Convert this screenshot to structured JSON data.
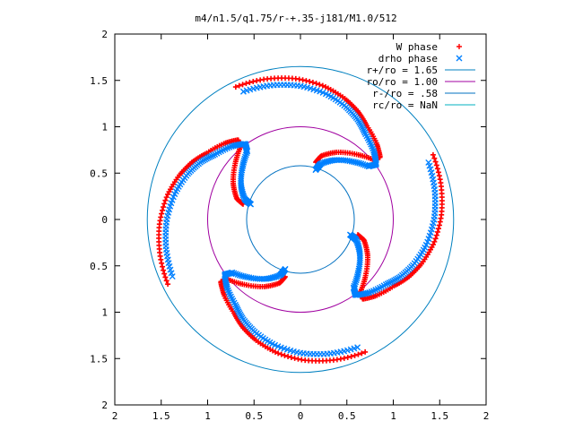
{
  "chart_data": {
    "type": "scatter",
    "title": "m4/n1.5/q1.75/r-+.35-j181/M1.0/512",
    "xlabel": "",
    "ylabel": "",
    "xlim": [
      -2,
      2
    ],
    "ylim": [
      -2,
      2
    ],
    "x_tick_labels": [
      "2",
      "1.5",
      "1",
      "0.5",
      "0",
      "0.5",
      "1",
      "1.5",
      "2"
    ],
    "y_tick_labels": [
      "2",
      "1.5",
      "1",
      "0.5",
      "0",
      "0.5",
      "1",
      "1.5",
      "2"
    ],
    "grid": false,
    "legend_position": "top-right",
    "legend": [
      {
        "label": "W phase",
        "color": "#ff0000",
        "marker": "plus"
      },
      {
        "label": "drho phase",
        "color": "#0080ff",
        "marker": "cross"
      },
      {
        "label": "r+/ro = 1.65",
        "color": "#0080c0",
        "marker": "line"
      },
      {
        "label": "ro/ro = 1.00",
        "color": "#a000a0",
        "marker": "line"
      },
      {
        "label": "r-/ro = .58",
        "color": "#0070c0",
        "marker": "line"
      },
      {
        "label": "rc/ro = NaN",
        "color": "#00b0c0",
        "marker": "line"
      }
    ],
    "circles": [
      {
        "name": "r+/ro",
        "r": 1.65,
        "color": "#0080c0"
      },
      {
        "name": "ro/ro",
        "r": 1.0,
        "color": "#a000a0"
      },
      {
        "name": "r-/ro",
        "r": 0.58,
        "color": "#0070c0"
      }
    ],
    "arms": [
      {
        "r": [
          0.6,
          0.68,
          0.78,
          0.88,
          0.97,
          1.05,
          1.12,
          1.2,
          1.28,
          1.35,
          1.42,
          1.48,
          1.52,
          1.55
        ],
        "theta_deg": [
          75,
          72,
          62,
          50,
          40,
          38,
          45,
          55,
          62,
          70,
          80,
          92,
          104,
          116
        ]
      },
      {
        "r": [
          0.6,
          0.68,
          0.78,
          0.88,
          0.97,
          1.05,
          1.12,
          1.2,
          1.28,
          1.35,
          1.42,
          1.48,
          1.52,
          1.55
        ],
        "theta_deg": [
          -15,
          -18,
          -28,
          -40,
          -50,
          -52,
          -45,
          -35,
          -28,
          -20,
          -10,
          2,
          14,
          26
        ]
      },
      {
        "r": [
          0.6,
          0.68,
          0.78,
          0.88,
          0.97,
          1.05,
          1.12,
          1.2,
          1.28,
          1.35,
          1.42,
          1.48,
          1.52,
          1.55
        ],
        "theta_deg": [
          -105,
          -108,
          -118,
          -130,
          -140,
          -142,
          -135,
          -125,
          -118,
          -110,
          -100,
          -88,
          -76,
          -64
        ]
      },
      {
        "r": [
          0.6,
          0.68,
          0.78,
          0.88,
          0.97,
          1.05,
          1.12,
          1.2,
          1.28,
          1.35,
          1.42,
          1.48,
          1.52,
          1.55
        ],
        "theta_deg": [
          165,
          162,
          152,
          140,
          130,
          128,
          135,
          145,
          152,
          160,
          170,
          182,
          194,
          206
        ]
      }
    ],
    "series": [
      {
        "name": "W phase",
        "color": "#ff0000",
        "marker": "plus",
        "offset": {
          "r": 0.04,
          "theta_deg": 0
        }
      },
      {
        "name": "drho phase",
        "color": "#0080ff",
        "marker": "cross",
        "offset": {
          "r": -0.04,
          "theta_deg": -2
        }
      }
    ]
  }
}
